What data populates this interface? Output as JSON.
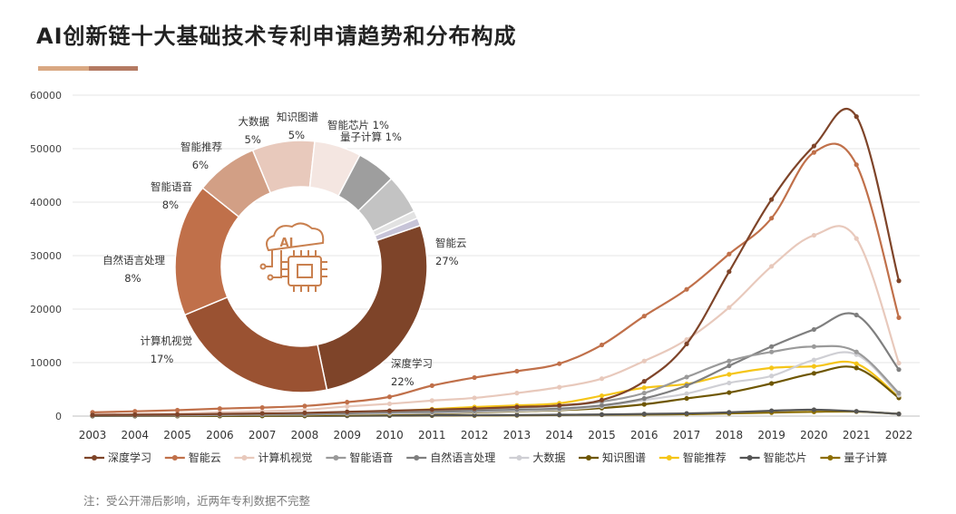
{
  "title": "AI创新链十大基础技术专利申请趋势和分布构成",
  "note": "注：受公开滞后影响，近两年专利数据不完整",
  "chart_data": [
    {
      "type": "line",
      "x": [
        "2003",
        "2004",
        "2005",
        "2006",
        "2007",
        "2008",
        "2009",
        "2010",
        "2011",
        "2012",
        "2013",
        "2014",
        "2015",
        "2016",
        "2017",
        "2018",
        "2019",
        "2020",
        "2021",
        "2022"
      ],
      "y_ticks": [
        "0",
        "10000",
        "20000",
        "30000",
        "40000",
        "50000",
        "60000"
      ],
      "ylim": [
        0,
        60000
      ],
      "grid": true,
      "legend": "bottom",
      "series": [
        {
          "name": "深度学习",
          "color": "#7e4429",
          "values": [
            200,
            250,
            300,
            400,
            500,
            600,
            800,
            1000,
            1200,
            1400,
            1700,
            2000,
            3000,
            6500,
            13500,
            27000,
            40500,
            50500,
            56000,
            25300
          ]
        },
        {
          "name": "智能云",
          "color": "#c0704a",
          "values": [
            700,
            900,
            1100,
            1400,
            1600,
            1900,
            2600,
            3600,
            5700,
            7200,
            8400,
            9800,
            13300,
            18700,
            23700,
            30300,
            37000,
            49300,
            47000,
            18400
          ]
        },
        {
          "name": "计算机视觉",
          "color": "#e8c9bc",
          "values": [
            300,
            400,
            500,
            700,
            900,
            1200,
            1800,
            2300,
            2900,
            3400,
            4300,
            5400,
            7000,
            10300,
            14300,
            20300,
            28000,
            33800,
            33200,
            9900
          ]
        },
        {
          "name": "智能语音",
          "color": "#9a9a9a",
          "values": [
            200,
            250,
            300,
            350,
            400,
            500,
            700,
            900,
            1100,
            1300,
            1600,
            1900,
            2700,
            4300,
            7300,
            10300,
            12000,
            13000,
            12000,
            4300
          ]
        },
        {
          "name": "自然语言处理",
          "color": "#7f7f7f",
          "values": [
            100,
            150,
            200,
            250,
            300,
            350,
            500,
            700,
            800,
            1000,
            1200,
            1400,
            2000,
            3300,
            5700,
            9400,
            13000,
            16200,
            18900,
            8700
          ]
        },
        {
          "name": "大数据",
          "color": "#cfcfd4",
          "values": [
            100,
            120,
            150,
            200,
            250,
            300,
            400,
            500,
            600,
            800,
            1000,
            1200,
            1800,
            3000,
            4200,
            6200,
            7500,
            10500,
            11500,
            3900
          ]
        },
        {
          "name": "知识图谱",
          "color": "#6e5600",
          "values": [
            50,
            60,
            70,
            80,
            100,
            150,
            250,
            350,
            500,
            700,
            900,
            1100,
            1500,
            2200,
            3300,
            4400,
            6100,
            8000,
            9000,
            3400
          ]
        },
        {
          "name": "智能推荐",
          "color": "#f5c518",
          "values": [
            150,
            200,
            250,
            300,
            350,
            400,
            600,
            900,
            1300,
            1700,
            2000,
            2400,
            3800,
            5300,
            6000,
            7800,
            9000,
            9300,
            9800,
            3500
          ]
        },
        {
          "name": "智能芯片",
          "color": "#555555",
          "values": [
            20,
            25,
            30,
            40,
            50,
            60,
            80,
            100,
            150,
            180,
            200,
            250,
            300,
            400,
            500,
            700,
            1000,
            1200,
            900,
            400
          ]
        },
        {
          "name": "量子计算",
          "color": "#8d6e00",
          "values": [
            10,
            15,
            20,
            25,
            30,
            40,
            60,
            80,
            100,
            120,
            150,
            200,
            250,
            300,
            350,
            500,
            650,
            800,
            850,
            400
          ]
        }
      ]
    },
    {
      "type": "pie",
      "donut": true,
      "center_icon": "ai-chip-icon",
      "slices": [
        {
          "label": "智能云",
          "pct": "27%",
          "value": 27,
          "color": "#7e4429"
        },
        {
          "label": "深度学习",
          "pct": "22%",
          "value": 22,
          "color": "#9a5232"
        },
        {
          "label": "计算机视觉",
          "pct": "17%",
          "value": 17,
          "color": "#c0704a"
        },
        {
          "label": "自然语言处理",
          "pct": "8%",
          "value": 8,
          "color": "#d29f85"
        },
        {
          "label": "智能语音",
          "pct": "8%",
          "value": 8,
          "color": "#e8c9bc"
        },
        {
          "label": "智能推荐",
          "pct": "6%",
          "value": 6,
          "color": "#f4e6e1"
        },
        {
          "label": "大数据",
          "pct": "5%",
          "value": 5,
          "color": "#9e9e9e"
        },
        {
          "label": "知识图谱",
          "pct": "5%",
          "value": 5,
          "color": "#c3c3c3"
        },
        {
          "label": "智能芯片",
          "pct": "1%",
          "value": 1,
          "color": "#e2e2e2"
        },
        {
          "label": "量子计算",
          "pct": "1%",
          "value": 1,
          "color": "#c7c4d8"
        }
      ]
    }
  ]
}
